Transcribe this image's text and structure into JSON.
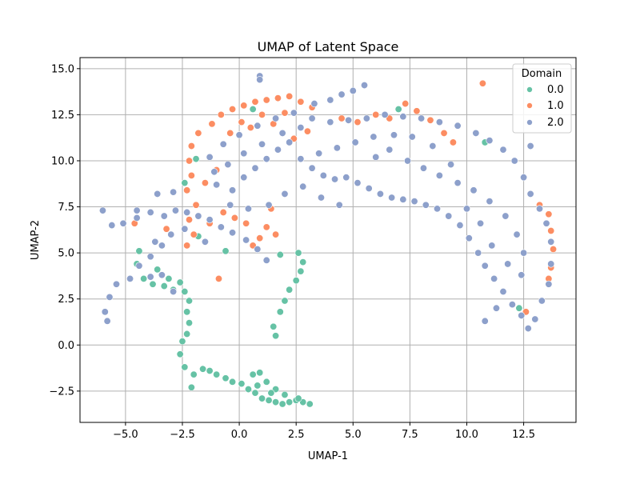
{
  "chart_data": {
    "type": "scatter",
    "title": "UMAP of Latent Space",
    "xlabel": "UMAP-1",
    "ylabel": "UMAP-2",
    "xlim": [
      -7.0,
      14.8
    ],
    "ylim": [
      -4.2,
      15.6
    ],
    "x_ticks": [
      -5.0,
      -2.5,
      0.0,
      2.5,
      5.0,
      7.5,
      10.0,
      12.5
    ],
    "x_tick_labels": [
      "−5.0",
      "−2.5",
      "0.0",
      "2.5",
      "5.0",
      "7.5",
      "10.0",
      "12.5"
    ],
    "y_ticks": [
      -2.5,
      0.0,
      2.5,
      5.0,
      7.5,
      10.0,
      12.5,
      15.0
    ],
    "y_tick_labels": [
      "−2.5",
      "0.0",
      "2.5",
      "5.0",
      "7.5",
      "10.0",
      "12.5",
      "15.0"
    ],
    "grid": true,
    "legend": {
      "title": "Domain",
      "placement": "top-right",
      "entries": [
        "0.0",
        "1.0",
        "2.0"
      ]
    },
    "series": [
      {
        "name": "0.0",
        "color": "#66c2a5",
        "points": [
          [
            -2.1,
            -2.3
          ],
          [
            -2.4,
            -1.2
          ],
          [
            -2.6,
            -0.5
          ],
          [
            -2.5,
            0.2
          ],
          [
            -2.3,
            0.6
          ],
          [
            -2.2,
            1.2
          ],
          [
            -2.3,
            1.8
          ],
          [
            -2.2,
            2.4
          ],
          [
            -2.4,
            2.9
          ],
          [
            -2.6,
            3.4
          ],
          [
            -2.9,
            3.0
          ],
          [
            -3.3,
            3.2
          ],
          [
            -3.8,
            3.3
          ],
          [
            -4.2,
            3.6
          ],
          [
            -4.5,
            4.4
          ],
          [
            -4.4,
            5.1
          ],
          [
            -3.6,
            4.1
          ],
          [
            -3.1,
            3.6
          ],
          [
            -2.0,
            -1.6
          ],
          [
            -1.6,
            -1.3
          ],
          [
            -1.3,
            -1.4
          ],
          [
            -1.0,
            -1.6
          ],
          [
            -0.6,
            -1.8
          ],
          [
            -0.3,
            -2.0
          ],
          [
            0.1,
            -2.1
          ],
          [
            0.4,
            -2.4
          ],
          [
            0.7,
            -2.6
          ],
          [
            1.0,
            -2.9
          ],
          [
            1.3,
            -3.0
          ],
          [
            1.6,
            -3.1
          ],
          [
            1.9,
            -3.2
          ],
          [
            2.2,
            -3.1
          ],
          [
            2.5,
            -3.0
          ],
          [
            2.8,
            -3.1
          ],
          [
            3.1,
            -3.2
          ],
          [
            0.6,
            -1.6
          ],
          [
            0.9,
            -1.5
          ],
          [
            1.2,
            -2.0
          ],
          [
            1.6,
            -2.4
          ],
          [
            2.0,
            -2.7
          ],
          [
            0.8,
            -2.2
          ],
          [
            1.4,
            -2.6
          ],
          [
            2.6,
            -2.9
          ],
          [
            1.6,
            0.5
          ],
          [
            1.5,
            1.0
          ],
          [
            1.8,
            1.8
          ],
          [
            2.0,
            2.4
          ],
          [
            2.2,
            3.0
          ],
          [
            2.5,
            3.5
          ],
          [
            2.7,
            4.0
          ],
          [
            2.8,
            4.5
          ],
          [
            2.6,
            5.0
          ],
          [
            1.8,
            4.9
          ],
          [
            -1.8,
            5.9
          ],
          [
            -0.6,
            5.1
          ],
          [
            0.8,
            5.2
          ],
          [
            0.6,
            12.8
          ],
          [
            -1.2,
            12.0
          ],
          [
            -1.9,
            10.1
          ],
          [
            -2.4,
            8.8
          ],
          [
            7.0,
            12.8
          ],
          [
            10.8,
            11.0
          ],
          [
            12.3,
            2.0
          ]
        ]
      },
      {
        "name": "1.0",
        "color": "#fc8d62",
        "points": [
          [
            -1.2,
            12.0
          ],
          [
            -0.8,
            12.5
          ],
          [
            -0.3,
            12.8
          ],
          [
            0.2,
            13.0
          ],
          [
            0.7,
            13.2
          ],
          [
            1.2,
            13.3
          ],
          [
            1.7,
            13.4
          ],
          [
            2.2,
            13.5
          ],
          [
            2.7,
            13.2
          ],
          [
            3.2,
            12.9
          ],
          [
            -1.8,
            11.5
          ],
          [
            -2.1,
            10.8
          ],
          [
            -2.2,
            10.0
          ],
          [
            -2.1,
            9.2
          ],
          [
            -2.3,
            8.4
          ],
          [
            -1.9,
            7.6
          ],
          [
            -2.2,
            6.8
          ],
          [
            -2.0,
            6.0
          ],
          [
            -2.3,
            5.4
          ],
          [
            -1.5,
            8.8
          ],
          [
            -1.0,
            9.5
          ],
          [
            -0.4,
            11.5
          ],
          [
            0.1,
            12.1
          ],
          [
            0.5,
            11.8
          ],
          [
            1.0,
            12.5
          ],
          [
            1.5,
            12.0
          ],
          [
            2.0,
            12.6
          ],
          [
            1.4,
            7.4
          ],
          [
            1.2,
            6.4
          ],
          [
            1.6,
            6.0
          ],
          [
            0.9,
            5.8
          ],
          [
            0.6,
            5.4
          ],
          [
            0.3,
            6.6
          ],
          [
            -0.2,
            6.9
          ],
          [
            -0.7,
            7.2
          ],
          [
            -1.3,
            6.6
          ],
          [
            4.5,
            12.3
          ],
          [
            5.2,
            12.1
          ],
          [
            6.0,
            12.5
          ],
          [
            6.6,
            12.3
          ],
          [
            7.3,
            13.1
          ],
          [
            7.8,
            12.7
          ],
          [
            8.4,
            12.2
          ],
          [
            9.0,
            11.5
          ],
          [
            9.4,
            11.0
          ],
          [
            13.2,
            7.6
          ],
          [
            13.6,
            7.1
          ],
          [
            13.7,
            6.2
          ],
          [
            13.8,
            5.2
          ],
          [
            13.7,
            4.2
          ],
          [
            13.6,
            3.6
          ],
          [
            12.6,
            1.8
          ],
          [
            10.7,
            14.2
          ],
          [
            -3.2,
            6.3
          ],
          [
            -4.6,
            6.6
          ],
          [
            -0.9,
            3.6
          ],
          [
            2.4,
            11.2
          ],
          [
            3.0,
            11.6
          ]
        ]
      },
      {
        "name": "2.0",
        "color": "#8da0cb",
        "points": [
          [
            -6.0,
            7.3
          ],
          [
            -5.6,
            6.5
          ],
          [
            -5.1,
            6.6
          ],
          [
            -4.5,
            6.9
          ],
          [
            -3.9,
            7.2
          ],
          [
            -3.3,
            7.0
          ],
          [
            -2.8,
            7.3
          ],
          [
            -2.3,
            7.2
          ],
          [
            -1.8,
            7.0
          ],
          [
            -1.3,
            6.8
          ],
          [
            -0.8,
            6.4
          ],
          [
            -0.3,
            6.1
          ],
          [
            0.3,
            5.7
          ],
          [
            0.8,
            5.2
          ],
          [
            1.2,
            4.6
          ],
          [
            -1.0,
            8.7
          ],
          [
            -0.3,
            8.4
          ],
          [
            -4.8,
            3.6
          ],
          [
            -5.4,
            3.3
          ],
          [
            -5.7,
            2.6
          ],
          [
            -5.9,
            1.8
          ],
          [
            -5.8,
            1.3
          ],
          [
            -4.4,
            4.3
          ],
          [
            -3.9,
            4.8
          ],
          [
            -3.4,
            5.4
          ],
          [
            -3.0,
            6.0
          ],
          [
            -3.7,
            5.6
          ],
          [
            -3.4,
            3.8
          ],
          [
            -2.9,
            2.9
          ],
          [
            -3.9,
            3.7
          ],
          [
            -2.4,
            6.3
          ],
          [
            -1.5,
            5.6
          ],
          [
            0.2,
            9.1
          ],
          [
            0.7,
            9.6
          ],
          [
            1.2,
            10.1
          ],
          [
            1.7,
            10.6
          ],
          [
            2.2,
            11.0
          ],
          [
            2.7,
            10.1
          ],
          [
            3.2,
            9.6
          ],
          [
            3.7,
            9.2
          ],
          [
            4.2,
            9.0
          ],
          [
            4.7,
            9.1
          ],
          [
            5.2,
            8.8
          ],
          [
            5.7,
            8.5
          ],
          [
            6.2,
            8.2
          ],
          [
            6.7,
            8.0
          ],
          [
            7.2,
            7.9
          ],
          [
            7.7,
            7.8
          ],
          [
            8.2,
            7.6
          ],
          [
            8.7,
            7.4
          ],
          [
            9.2,
            7.0
          ],
          [
            9.7,
            6.5
          ],
          [
            10.1,
            5.8
          ],
          [
            10.5,
            5.0
          ],
          [
            10.8,
            4.3
          ],
          [
            11.2,
            3.6
          ],
          [
            11.6,
            2.9
          ],
          [
            12.0,
            2.2
          ],
          [
            12.4,
            1.6
          ],
          [
            12.7,
            0.9
          ],
          [
            13.0,
            1.4
          ],
          [
            13.3,
            2.4
          ],
          [
            13.6,
            3.3
          ],
          [
            13.7,
            4.4
          ],
          [
            13.7,
            5.6
          ],
          [
            13.5,
            6.6
          ],
          [
            13.2,
            7.4
          ],
          [
            12.8,
            8.2
          ],
          [
            12.5,
            9.1
          ],
          [
            12.1,
            10.0
          ],
          [
            11.6,
            10.6
          ],
          [
            11.0,
            11.1
          ],
          [
            10.4,
            11.5
          ],
          [
            9.6,
            11.9
          ],
          [
            8.8,
            12.1
          ],
          [
            8.0,
            12.3
          ],
          [
            7.2,
            12.4
          ],
          [
            6.4,
            12.5
          ],
          [
            5.6,
            12.3
          ],
          [
            4.8,
            12.2
          ],
          [
            4.0,
            12.1
          ],
          [
            3.2,
            12.3
          ],
          [
            2.4,
            12.6
          ],
          [
            1.6,
            12.3
          ],
          [
            0.8,
            11.9
          ],
          [
            0.0,
            11.4
          ],
          [
            -0.7,
            10.9
          ],
          [
            -1.3,
            10.2
          ],
          [
            4.0,
            13.3
          ],
          [
            4.5,
            13.6
          ],
          [
            5.0,
            13.8
          ],
          [
            5.5,
            14.1
          ],
          [
            3.3,
            13.1
          ],
          [
            0.9,
            14.6
          ],
          [
            0.9,
            14.4
          ],
          [
            12.8,
            10.8
          ],
          [
            10.8,
            1.3
          ],
          [
            11.3,
            2.0
          ],
          [
            6.0,
            10.2
          ],
          [
            6.6,
            10.6
          ],
          [
            7.4,
            10.0
          ],
          [
            8.1,
            9.6
          ],
          [
            8.8,
            9.2
          ],
          [
            9.6,
            8.8
          ],
          [
            10.3,
            8.4
          ],
          [
            11.0,
            7.8
          ],
          [
            11.7,
            7.0
          ],
          [
            12.2,
            6.0
          ],
          [
            12.5,
            5.0
          ],
          [
            12.4,
            3.8
          ],
          [
            11.8,
            4.4
          ],
          [
            11.1,
            5.4
          ],
          [
            10.6,
            6.6
          ],
          [
            10.0,
            7.4
          ],
          [
            9.3,
            9.8
          ],
          [
            8.5,
            10.8
          ],
          [
            7.6,
            11.3
          ],
          [
            6.8,
            11.4
          ],
          [
            5.9,
            11.3
          ],
          [
            5.1,
            11.0
          ],
          [
            4.3,
            10.7
          ],
          [
            3.5,
            10.4
          ],
          [
            2.7,
            11.8
          ],
          [
            1.9,
            11.5
          ],
          [
            1.0,
            10.9
          ],
          [
            0.2,
            10.4
          ],
          [
            -0.5,
            9.8
          ],
          [
            -1.1,
            9.4
          ],
          [
            2.0,
            8.2
          ],
          [
            2.8,
            8.6
          ],
          [
            3.6,
            8.0
          ],
          [
            4.4,
            7.6
          ],
          [
            1.3,
            7.6
          ],
          [
            0.4,
            7.4
          ],
          [
            -0.4,
            7.6
          ],
          [
            -2.9,
            8.3
          ],
          [
            -3.6,
            8.2
          ],
          [
            -4.5,
            7.3
          ]
        ]
      }
    ]
  }
}
